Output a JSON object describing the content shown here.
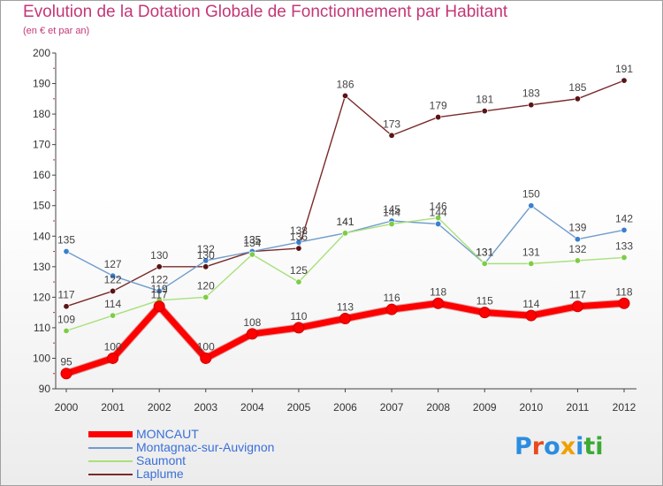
{
  "header": {
    "title": "Evolution de la Dotation Globale de Fonctionnement par Habitant",
    "subtitle": "(en € et par an)"
  },
  "logo": {
    "text": "Proxiti",
    "letters": [
      "P",
      "r",
      "o",
      "x",
      "i",
      "ti"
    ]
  },
  "chart_data": {
    "type": "line",
    "title": "Evolution de la Dotation Globale de Fonctionnement par Habitant",
    "subtitle": "(en € et par an)",
    "xlabel": "",
    "ylabel": "",
    "x": [
      "2000",
      "2001",
      "2002",
      "2003",
      "2004",
      "2005",
      "2006",
      "2007",
      "2008",
      "2009",
      "2010",
      "2011",
      "2012"
    ],
    "ylim": [
      90,
      200
    ],
    "yticks": [
      "90",
      "100",
      "110",
      "120",
      "130",
      "140",
      "150",
      "160",
      "170",
      "180",
      "190",
      "200"
    ],
    "grid": false,
    "legend_position": "bottom-left",
    "series": [
      {
        "name": "MONCAUT",
        "color": "#ff0000",
        "marker": "#ff0000",
        "values": [
          95,
          100,
          117,
          100,
          108,
          110,
          113,
          116,
          118,
          115,
          114,
          117,
          118
        ],
        "labels": [
          "95",
          "100",
          "117",
          "100",
          "108",
          "110",
          "113",
          "116",
          "118",
          "115",
          "114",
          "117",
          "118"
        ]
      },
      {
        "name": "Montagnac-sur-Auvignon",
        "color": "#6f9ccc",
        "marker": "#3a7fd0",
        "values": [
          135,
          127,
          122,
          132,
          135,
          138,
          141,
          145,
          144,
          131,
          150,
          139,
          142
        ],
        "labels": [
          "135",
          "127",
          "122",
          "132",
          "135",
          "138",
          "141",
          "145",
          "144",
          "131",
          "150",
          "139",
          "142"
        ]
      },
      {
        "name": "Saumont",
        "color": "#a8e07a",
        "marker": "#7ccd45",
        "values": [
          109,
          114,
          119,
          120,
          134,
          125,
          141,
          144,
          146,
          131,
          131,
          132,
          133
        ],
        "labels": [
          "109",
          "114",
          "119",
          "120",
          "134",
          "125",
          "141",
          "144",
          "146",
          "131",
          "131",
          "132",
          "133"
        ]
      },
      {
        "name": "Laplume",
        "color": "#7a2a2a",
        "marker": "#5a1414",
        "values": [
          117,
          122,
          130,
          130,
          135,
          136,
          186,
          173,
          179,
          181,
          183,
          185,
          191
        ],
        "labels": [
          "117",
          "122",
          "130",
          "130",
          "135",
          "136",
          "186",
          "173",
          "179",
          "181",
          "183",
          "185",
          "191"
        ]
      }
    ]
  }
}
